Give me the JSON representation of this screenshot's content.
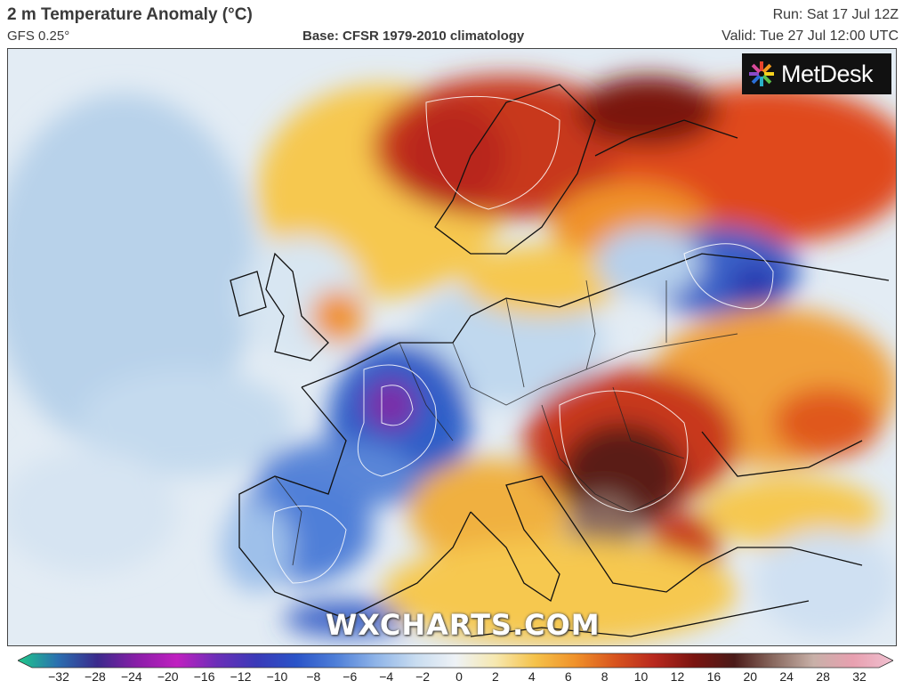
{
  "header": {
    "title": "2 m Temperature Anomaly (°C)",
    "model": "GFS 0.25°",
    "base": "Base: CFSR 1979-2010 climatology",
    "run": "Run: Sat 17 Jul 12Z",
    "valid": "Valid: Tue 27 Jul 12:00 UTC"
  },
  "logo": {
    "text": "MetDesk",
    "icon": "metdesk-star-icon"
  },
  "watermark": "WXCHARTS.COM",
  "colorbar": {
    "ticks": [
      "−32",
      "−28",
      "−24",
      "−20",
      "−16",
      "−12",
      "−10",
      "−8",
      "−6",
      "−4",
      "−2",
      "0",
      "2",
      "4",
      "6",
      "8",
      "10",
      "12",
      "16",
      "20",
      "24",
      "28",
      "32"
    ],
    "stops": [
      "#1fc98a",
      "#2a6fb0",
      "#3b2a8c",
      "#8a1ea8",
      "#c020c0",
      "#6b2fb8",
      "#3a3ab8",
      "#2a54c8",
      "#4f7fd8",
      "#8fb4e8",
      "#c8dcf0",
      "#eef2f6",
      "#f6e8b0",
      "#f5c24a",
      "#f0922a",
      "#d8541e",
      "#b8281e",
      "#7a1410",
      "#4a1a18",
      "#8a6a60",
      "#c8b0a8",
      "#e8a0b0",
      "#f0c0d0"
    ]
  },
  "map": {
    "region": "Europe",
    "colors": {
      "cold_deep": "#7a2aa8",
      "cold": "#2f5fc8",
      "cool": "#8fb8e8",
      "neutral": "#e6eef6",
      "warm": "#f6c850",
      "hot": "#e8782a",
      "very_hot": "#b8281e",
      "extreme": "#4a1a14"
    }
  }
}
